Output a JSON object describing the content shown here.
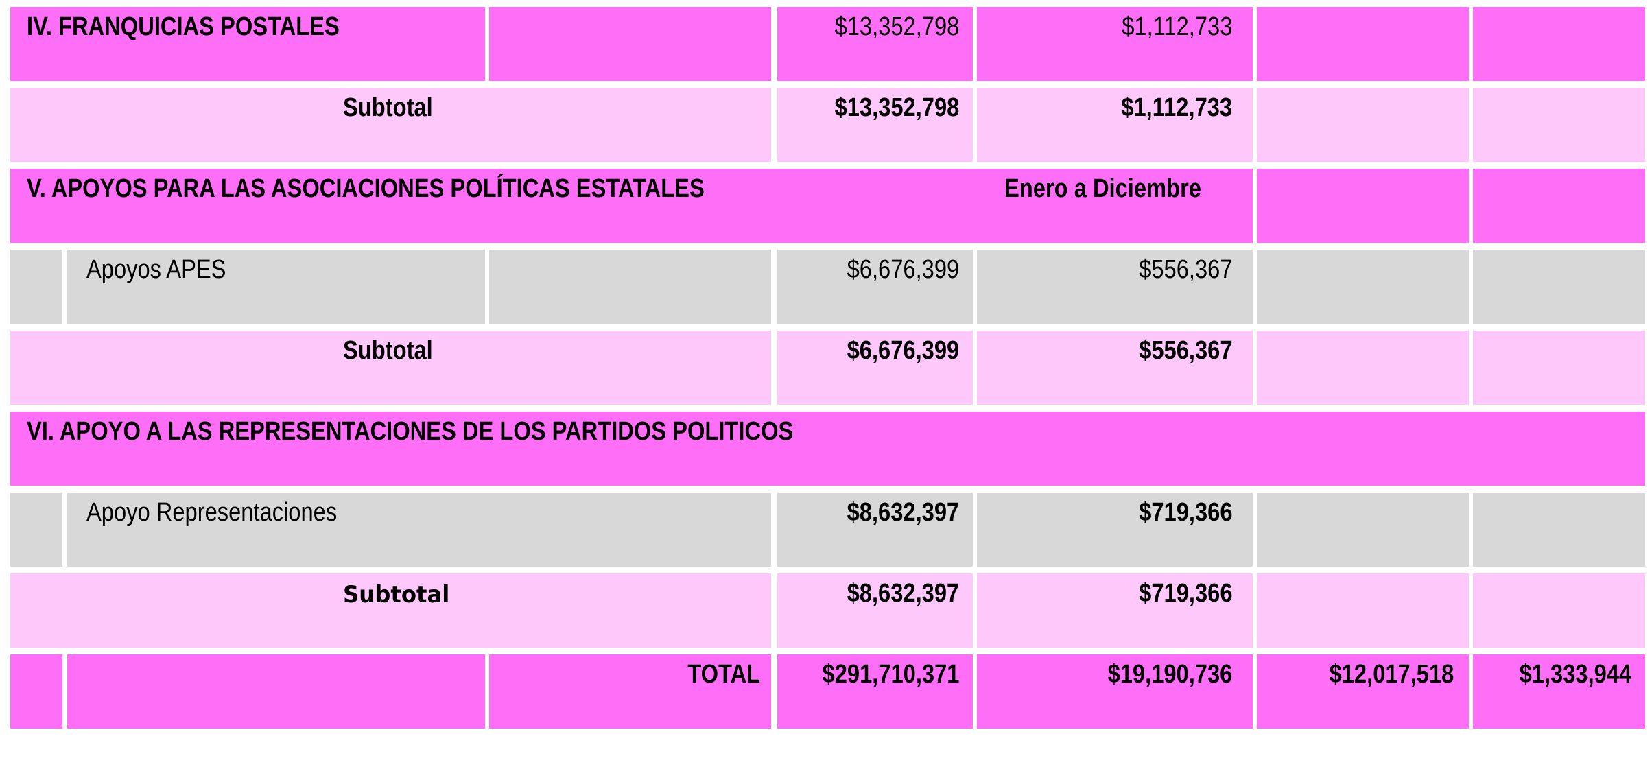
{
  "sections": {
    "franquicias": {
      "title": "IV. FRANQUICIAS POSTALES",
      "amount_annual": "$13,352,798",
      "amount_monthly": "$1,112,733",
      "subtotal_label": "Subtotal",
      "subtotal_annual": "$13,352,798",
      "subtotal_monthly": "$1,112,733"
    },
    "apoyos_apes": {
      "title": "V. APOYOS PARA LAS ASOCIACIONES POLÍTICAS ESTATALES",
      "period": "Enero a Diciembre",
      "item_label": "Apoyos APES",
      "item_annual": "$6,676,399",
      "item_monthly": "$556,367",
      "subtotal_label": "Subtotal",
      "subtotal_annual": "$6,676,399",
      "subtotal_monthly": "$556,367"
    },
    "representaciones": {
      "title": "VI. APOYO A LAS REPRESENTACIONES DE LOS PARTIDOS POLITICOS",
      "item_label": "Apoyo Representaciones",
      "item_annual": "$8,632,397",
      "item_monthly": "$719,366",
      "subtotal_label": "Subtotal",
      "subtotal_annual": "$8,632,397",
      "subtotal_monthly": "$719,366"
    }
  },
  "total": {
    "label": "TOTAL",
    "annual": "$291,710,371",
    "monthly": "$19,190,736",
    "col5": "$12,017,518",
    "col6": "$1,333,944"
  },
  "colors": {
    "header_magenta": "#ff6ef6",
    "subtotal_pink": "#ffc8fb",
    "item_grey": "#d8d8d8"
  }
}
